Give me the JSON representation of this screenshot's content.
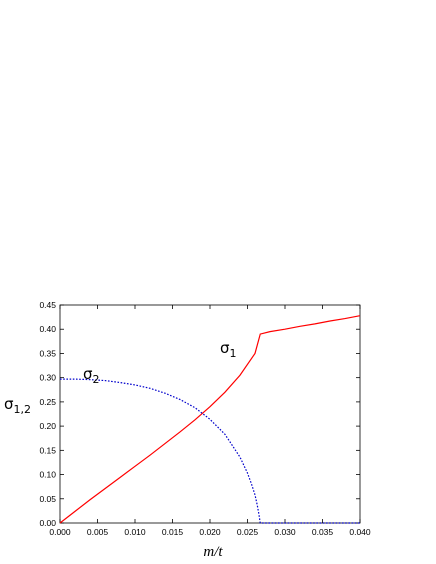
{
  "chart_data": {
    "type": "line",
    "xlabel": "m/t",
    "ylabel": {
      "base": "σ",
      "sub": "1,2"
    },
    "xlim": [
      0.0,
      0.04
    ],
    "ylim": [
      0.0,
      0.45
    ],
    "x_ticks": [
      "0.000",
      "0.005",
      "0.010",
      "0.015",
      "0.020",
      "0.025",
      "0.030",
      "0.035",
      "0.040"
    ],
    "y_ticks": [
      "0.00",
      "0.05",
      "0.10",
      "0.15",
      "0.20",
      "0.25",
      "0.30",
      "0.35",
      "0.40",
      "0.45"
    ],
    "grid": false,
    "series": [
      {
        "name": "σ1",
        "label_base": "σ",
        "label_sub": "1",
        "color": "#ff0000",
        "style": "solid",
        "x": [
          0.0,
          0.002,
          0.004,
          0.006,
          0.008,
          0.01,
          0.012,
          0.014,
          0.016,
          0.018,
          0.02,
          0.022,
          0.024,
          0.026,
          0.0267,
          0.028,
          0.03,
          0.032,
          0.034,
          0.036,
          0.038,
          0.04
        ],
        "y": [
          0.0,
          0.024,
          0.048,
          0.071,
          0.094,
          0.117,
          0.14,
          0.164,
          0.188,
          0.213,
          0.24,
          0.27,
          0.305,
          0.35,
          0.39,
          0.395,
          0.4,
          0.406,
          0.411,
          0.417,
          0.422,
          0.428
        ]
      },
      {
        "name": "σ2",
        "label_base": "σ",
        "label_sub": "2",
        "color": "#0000cc",
        "style": "dotted",
        "x": [
          0.0,
          0.002,
          0.004,
          0.006,
          0.008,
          0.01,
          0.012,
          0.014,
          0.016,
          0.018,
          0.02,
          0.022,
          0.024,
          0.025,
          0.0255,
          0.026,
          0.0263,
          0.0265,
          0.0267,
          0.028,
          0.03,
          0.032,
          0.034,
          0.036,
          0.038,
          0.04
        ],
        "y": [
          0.297,
          0.297,
          0.296,
          0.294,
          0.29,
          0.285,
          0.278,
          0.268,
          0.255,
          0.238,
          0.214,
          0.183,
          0.136,
          0.103,
          0.082,
          0.058,
          0.037,
          0.02,
          0.0,
          0.0,
          0.0,
          0.0,
          0.0,
          0.0,
          0.0,
          0.0
        ]
      }
    ]
  }
}
